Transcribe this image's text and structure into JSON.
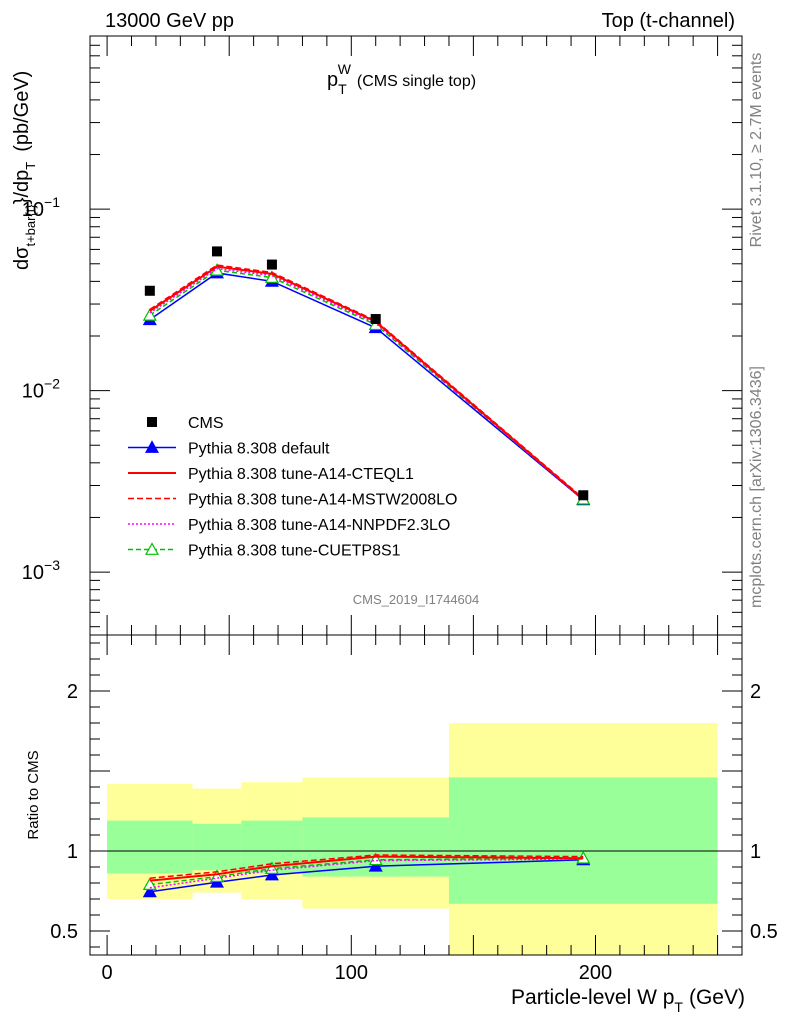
{
  "header": {
    "left": "13000 GeV pp",
    "right": "Top (t-channel)"
  },
  "side_labels": {
    "rivet": "Rivet 3.1.10, ≥ 2.7M events",
    "source": "mcplots.cern.ch [arXiv:1306.3436]"
  },
  "chart_data": [
    {
      "panel": "main",
      "type": "line",
      "title_main": "p",
      "title_sup": "W",
      "title_sub": "T",
      "title_rest": "(CMS single top)",
      "ylabel_parts": [
        "dσ",
        "t+bar{t}",
        "}/dp",
        "T",
        "(pb/GeV)"
      ],
      "analysis_id": "CMS_2019_I1744604",
      "yscale": "log",
      "ylim": [
        0.00045,
        0.9
      ],
      "xlim": [
        -7,
        260
      ],
      "y_ticks": [
        {
          "value": 0.001,
          "mantissa": "10",
          "exp": "−3"
        },
        {
          "value": 0.01,
          "mantissa": "10",
          "exp": "−2"
        },
        {
          "value": 0.1,
          "mantissa": "10",
          "exp": "−1"
        }
      ],
      "x": [
        17.5,
        45,
        67.5,
        110,
        195
      ],
      "data": {
        "name": "CMS",
        "values": [
          0.0355,
          0.0585,
          0.0495,
          0.0248,
          0.00265
        ],
        "color": "#000000"
      },
      "series": [
        {
          "name": "Pythia 8.308 default",
          "values": [
            0.0246,
            0.0445,
            0.04,
            0.0222,
            0.0025
          ],
          "color": "#0000ff",
          "dash": "",
          "marker": "triangle-filled"
        },
        {
          "name": "Pythia 8.308 tune-A14-CTEQL1",
          "values": [
            0.0275,
            0.0482,
            0.044,
            0.024,
            0.00252
          ],
          "color": "#ff0000",
          "dash": "",
          "marker": "none"
        },
        {
          "name": "Pythia 8.308 tune-A14-MSTW2008LO",
          "values": [
            0.028,
            0.0492,
            0.0448,
            0.0243,
            0.00255
          ],
          "color": "#ff0000",
          "dash": "6,3",
          "marker": "none"
        },
        {
          "name": "Pythia 8.308 tune-A14-NNPDF2.3LO",
          "values": [
            0.0268,
            0.047,
            0.043,
            0.0235,
            0.0025
          ],
          "color": "#ff00ff",
          "dash": "2,2",
          "marker": "none"
        },
        {
          "name": "Pythia 8.308 tune-CUETP8S1",
          "values": [
            0.026,
            0.046,
            0.042,
            0.0231,
            0.00252
          ],
          "color": "#00c000",
          "dash": "5,3",
          "marker": "triangle-open"
        }
      ]
    },
    {
      "panel": "ratio",
      "type": "line",
      "ylabel": "Ratio to CMS",
      "xlabel_main": "Particle-level W p",
      "xlabel_sub": "T",
      "xlabel_rest": "(GeV)",
      "ylim": [
        0.35,
        2.35
      ],
      "xlim": [
        -7,
        260
      ],
      "y_ticks": [
        {
          "value": 0.5,
          "label": "0.5"
        },
        {
          "value": 1,
          "label": "1"
        },
        {
          "value": 2,
          "label": "2"
        }
      ],
      "x_ticks": [
        {
          "value": 0,
          "label": "0"
        },
        {
          "value": 100,
          "label": "100"
        },
        {
          "value": 200,
          "label": "200"
        }
      ],
      "bins": [
        {
          "lo": 0,
          "hi": 35,
          "in_lo": 0.86,
          "in_hi": 1.19,
          "out_lo": 0.7,
          "out_hi": 1.42
        },
        {
          "lo": 35,
          "hi": 55,
          "in_lo": 0.88,
          "in_hi": 1.17,
          "out_lo": 0.74,
          "out_hi": 1.39
        },
        {
          "lo": 55,
          "hi": 80,
          "in_lo": 0.86,
          "in_hi": 1.19,
          "out_lo": 0.7,
          "out_hi": 1.43
        },
        {
          "lo": 80,
          "hi": 140,
          "in_lo": 0.84,
          "in_hi": 1.21,
          "out_lo": 0.64,
          "out_hi": 1.46
        },
        {
          "lo": 140,
          "hi": 250,
          "in_lo": 0.67,
          "in_hi": 1.46,
          "out_lo": 0.35,
          "out_hi": 1.8
        }
      ],
      "x": [
        17.5,
        45,
        67.5,
        110,
        195
      ],
      "series": [
        {
          "name": "Pythia 8.308 default",
          "values": [
            0.745,
            0.805,
            0.85,
            0.905,
            0.945
          ],
          "color": "#0000ff",
          "dash": "",
          "marker": "triangle-filled"
        },
        {
          "name": "Pythia 8.308 tune-A14-CTEQL1",
          "values": [
            0.815,
            0.855,
            0.905,
            0.965,
            0.955
          ],
          "color": "#ff0000",
          "dash": "",
          "marker": "none"
        },
        {
          "name": "Pythia 8.308 tune-A14-MSTW2008LO",
          "values": [
            0.83,
            0.87,
            0.92,
            0.975,
            0.965
          ],
          "color": "#ff0000",
          "dash": "6,3",
          "marker": "none"
        },
        {
          "name": "Pythia 8.308 tune-A14-NNPDF2.3LO",
          "values": [
            0.77,
            0.83,
            0.88,
            0.94,
            0.95
          ],
          "color": "#ff00ff",
          "dash": "2,2",
          "marker": "none"
        },
        {
          "name": "Pythia 8.308 tune-CUETP8S1",
          "values": [
            0.79,
            0.84,
            0.89,
            0.945,
            0.955
          ],
          "color": "#00c000",
          "dash": "5,3",
          "marker": "triangle-open"
        }
      ]
    }
  ]
}
